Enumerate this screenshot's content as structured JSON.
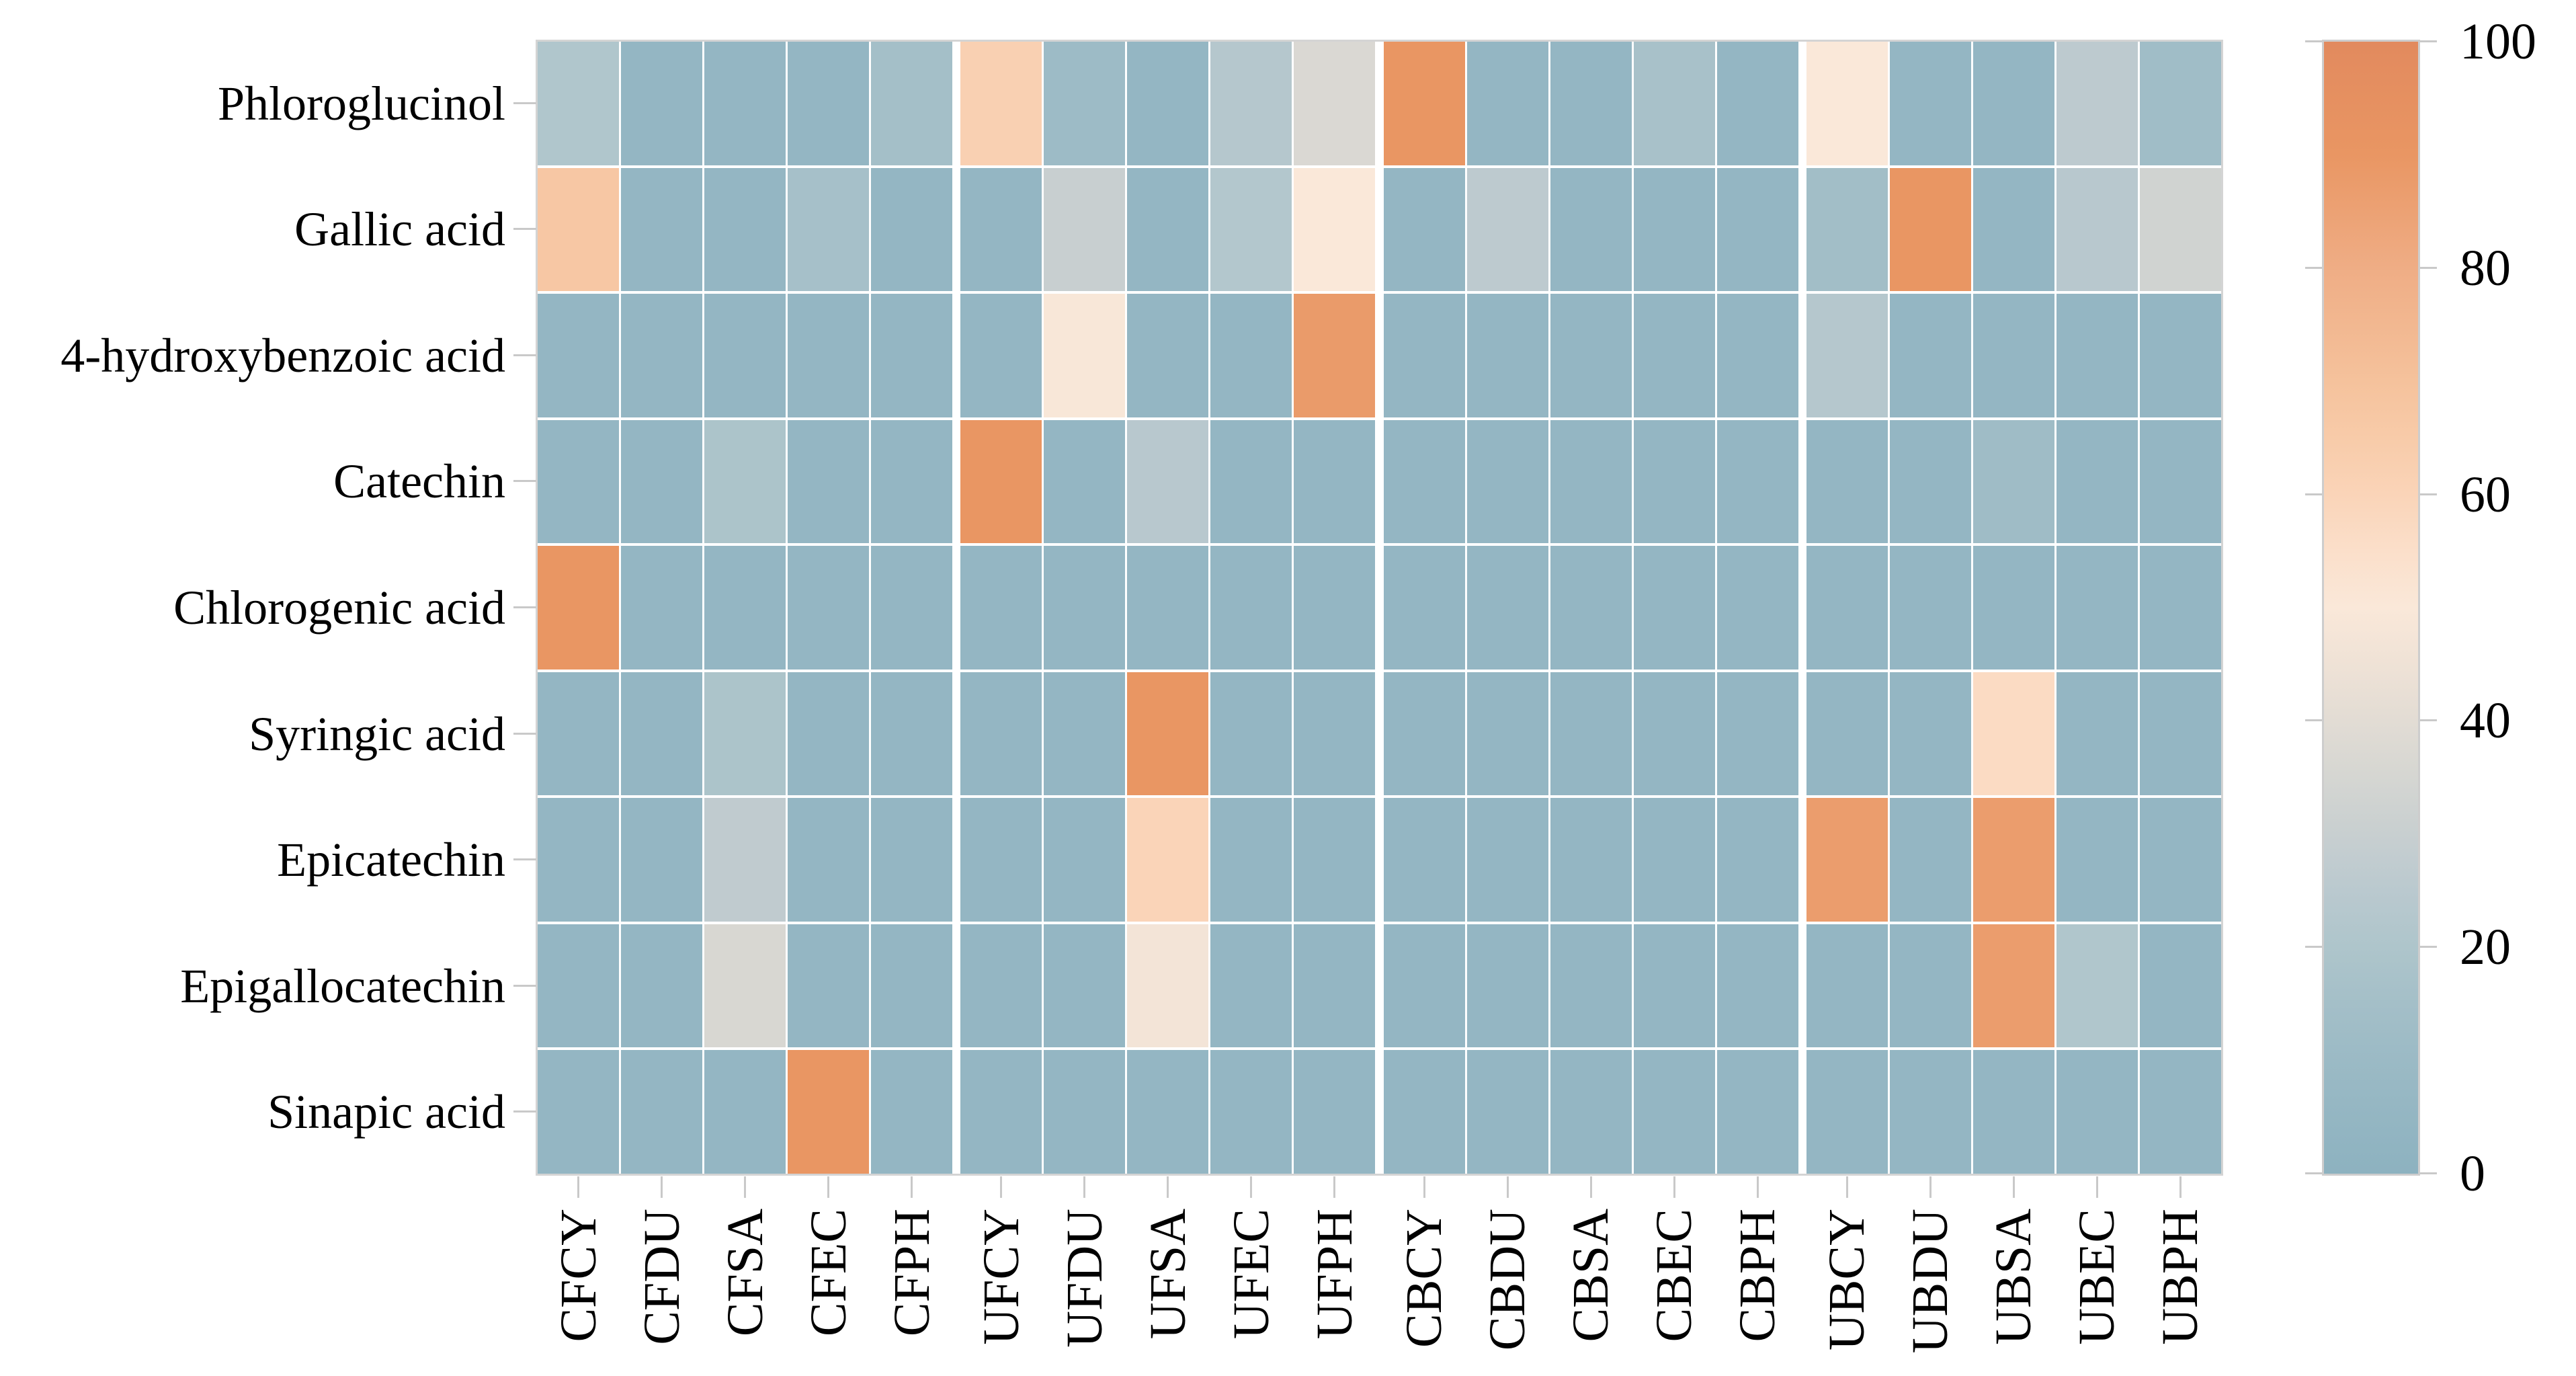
{
  "figure": {
    "background_color": "#ffffff",
    "grid_line_color": "#ffffff",
    "axis_border_color": "#d4d4d4",
    "tick_color": "#c9c9c9",
    "label_color": "#000000"
  },
  "chart_data": {
    "type": "heatmap",
    "title": "",
    "xlabel": "",
    "ylabel": "",
    "legend_position": "right-colorbar",
    "grid": "white cell separators, wider gaps between groups of 5 columns",
    "columns": [
      "CFCY",
      "CFDU",
      "CFSA",
      "CFEC",
      "CFPH",
      "UFCY",
      "UFDU",
      "UFSA",
      "UFEC",
      "UFPH",
      "CBCY",
      "CBDU",
      "CBSA",
      "CBEC",
      "CBPH",
      "UBCY",
      "UBDU",
      "UBSA",
      "UBEC",
      "UBPH"
    ],
    "column_group_size": 5,
    "rows": [
      "Phloroglucinol",
      "Gallic acid",
      "4-hydroxybenzoic acid",
      "Catechin",
      "Chlorogenic acid",
      "Syringic acid",
      "Epicatechin",
      "Epigallocatechin",
      "Sinapic acid"
    ],
    "values": [
      [
        21,
        5,
        5,
        5,
        15,
        62,
        11,
        5,
        23,
        37,
        90,
        5,
        5,
        17,
        5,
        50,
        5,
        5,
        26,
        13
      ],
      [
        67,
        5,
        5,
        16,
        5,
        5,
        30,
        5,
        22,
        50,
        5,
        26,
        5,
        5,
        5,
        14,
        90,
        5,
        24,
        33
      ],
      [
        5,
        5,
        5,
        5,
        5,
        5,
        49,
        5,
        5,
        88,
        5,
        5,
        5,
        5,
        5,
        23,
        5,
        5,
        5,
        5
      ],
      [
        5,
        5,
        19,
        5,
        5,
        90,
        5,
        24,
        5,
        5,
        5,
        5,
        5,
        5,
        5,
        5,
        5,
        12,
        5,
        5
      ],
      [
        90,
        5,
        5,
        5,
        5,
        5,
        5,
        5,
        5,
        5,
        5,
        5,
        5,
        5,
        5,
        5,
        5,
        5,
        5,
        5
      ],
      [
        5,
        5,
        19,
        5,
        5,
        5,
        5,
        90,
        5,
        5,
        5,
        5,
        5,
        5,
        5,
        5,
        5,
        57,
        5,
        5
      ],
      [
        5,
        5,
        27,
        5,
        5,
        5,
        5,
        60,
        5,
        5,
        5,
        5,
        5,
        5,
        5,
        87,
        5,
        87,
        5,
        5
      ],
      [
        5,
        5,
        36,
        5,
        5,
        5,
        5,
        47,
        5,
        5,
        5,
        5,
        5,
        5,
        5,
        5,
        5,
        87,
        21,
        5
      ],
      [
        5,
        5,
        5,
        90,
        5,
        5,
        5,
        5,
        5,
        5,
        5,
        5,
        5,
        5,
        5,
        5,
        5,
        5,
        5,
        5
      ]
    ],
    "value_min": 0,
    "value_max": 100,
    "colorbar": {
      "side": "right",
      "ticks": [
        0,
        20,
        40,
        60,
        80,
        100
      ],
      "tick_labels": [
        "0",
        "20",
        "40",
        "60",
        "80",
        "100"
      ]
    },
    "colormap_stops": [
      [
        0,
        "#8db2c0"
      ],
      [
        10,
        "#9bbac5"
      ],
      [
        15,
        "#a4bfc8"
      ],
      [
        20,
        "#aec5cb"
      ],
      [
        25,
        "#bac9cf"
      ],
      [
        30,
        "#c8cfd0"
      ],
      [
        35,
        "#d5d6d2"
      ],
      [
        40,
        "#e2dcd4"
      ],
      [
        45,
        "#efe2d6"
      ],
      [
        50,
        "#fae8d9"
      ],
      [
        55,
        "#fbdfca"
      ],
      [
        60,
        "#fad4b8"
      ],
      [
        65,
        "#f8cba9"
      ],
      [
        70,
        "#f5c29c"
      ],
      [
        80,
        "#efad85"
      ],
      [
        90,
        "#e99663"
      ],
      [
        100,
        "#e28a5e"
      ]
    ]
  }
}
